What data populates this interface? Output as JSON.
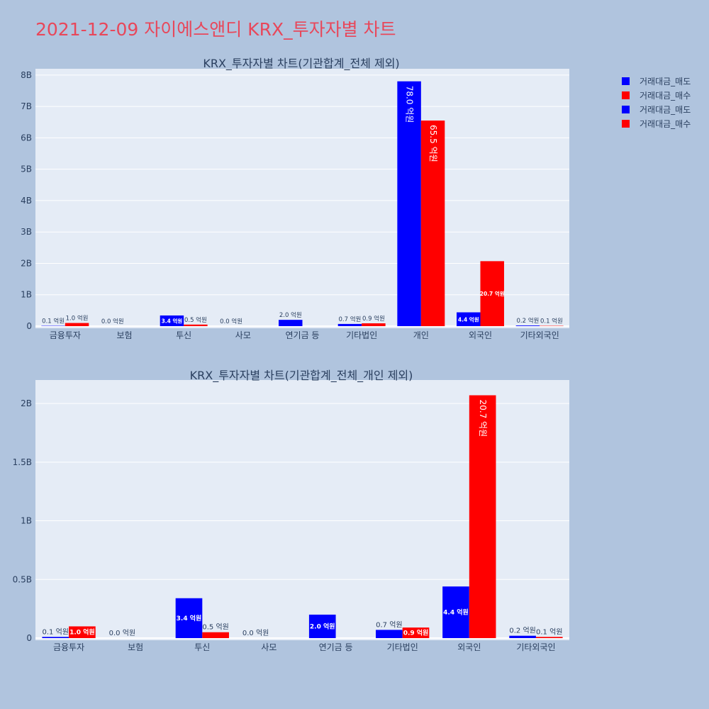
{
  "page_title": "2021-12-09 자이에스앤디 KRX_투자자별 차트",
  "legend": [
    {
      "label": "거래대금_매도",
      "color": "#0000ff"
    },
    {
      "label": "거래대금_매수",
      "color": "#ff0000"
    },
    {
      "label": "거래대금_매도",
      "color": "#0000ff"
    },
    {
      "label": "거래대금_매수",
      "color": "#ff0000"
    }
  ],
  "chart_data": [
    {
      "type": "bar",
      "title": "KRX_투자자별 차트(기관합계_전체 제외)",
      "categories": [
        "금융투자",
        "보험",
        "투신",
        "사모",
        "연기금 등",
        "기타법인",
        "개인",
        "외국인",
        "기타외국인"
      ],
      "ylim": [
        0,
        8200000000
      ],
      "yticks": [
        {
          "value": 0,
          "label": "0"
        },
        {
          "value": 1000000000,
          "label": "1B"
        },
        {
          "value": 2000000000,
          "label": "2B"
        },
        {
          "value": 3000000000,
          "label": "3B"
        },
        {
          "value": 4000000000,
          "label": "4B"
        },
        {
          "value": 5000000000,
          "label": "5B"
        },
        {
          "value": 6000000000,
          "label": "6B"
        },
        {
          "value": 7000000000,
          "label": "7B"
        },
        {
          "value": 8000000000,
          "label": "8B"
        }
      ],
      "grid": true,
      "series": [
        {
          "name": "거래대금_매도",
          "color": "#0000ff",
          "values": [
            10000000,
            0,
            340000000,
            0,
            200000000,
            70000000,
            7800000000,
            440000000,
            20000000
          ],
          "labels": [
            "0.1 억원",
            "0.0 억원",
            "3.4 억원",
            "0.0 억원",
            "2.0 억원",
            "0.7 억원",
            "78.0 억원",
            "4.4 억원",
            "0.2 억원"
          ]
        },
        {
          "name": "거래대금_매수",
          "color": "#ff0000",
          "values": [
            100000000,
            0,
            50000000,
            0,
            0,
            90000000,
            6550000000,
            2070000000,
            10000000
          ],
          "labels": [
            "1.0 억원",
            "",
            "0.5 억원",
            "",
            "",
            "0.9 억원",
            "65.5 억원",
            "20.7 억원",
            "0.1 억원"
          ]
        }
      ]
    },
    {
      "type": "bar",
      "title": "KRX_투자자별 차트(기관합계_전체_개인 제외)",
      "categories": [
        "금융투자",
        "보험",
        "투신",
        "사모",
        "연기금 등",
        "기타법인",
        "외국인",
        "기타외국인"
      ],
      "ylim": [
        0,
        2200000000
      ],
      "yticks": [
        {
          "value": 0,
          "label": "0"
        },
        {
          "value": 500000000,
          "label": "0.5B"
        },
        {
          "value": 1000000000,
          "label": "1B"
        },
        {
          "value": 1500000000,
          "label": "1.5B"
        },
        {
          "value": 2000000000,
          "label": "2B"
        }
      ],
      "grid": true,
      "series": [
        {
          "name": "거래대금_매도",
          "color": "#0000ff",
          "values": [
            10000000,
            0,
            340000000,
            0,
            200000000,
            70000000,
            440000000,
            20000000
          ],
          "labels": [
            "0.1 억원",
            "0.0 억원",
            "3.4 억원",
            "0.0 억원",
            "2.0 억원",
            "0.7 억원",
            "4.4 억원",
            "0.2 억원"
          ]
        },
        {
          "name": "거래대금_매수",
          "color": "#ff0000",
          "values": [
            100000000,
            0,
            50000000,
            0,
            0,
            90000000,
            2070000000,
            10000000
          ],
          "labels": [
            "1.0 억원",
            "",
            "0.5 억원",
            "",
            "",
            "0.9 억원",
            "20.7 억원",
            "0.1 억원"
          ]
        }
      ]
    }
  ]
}
